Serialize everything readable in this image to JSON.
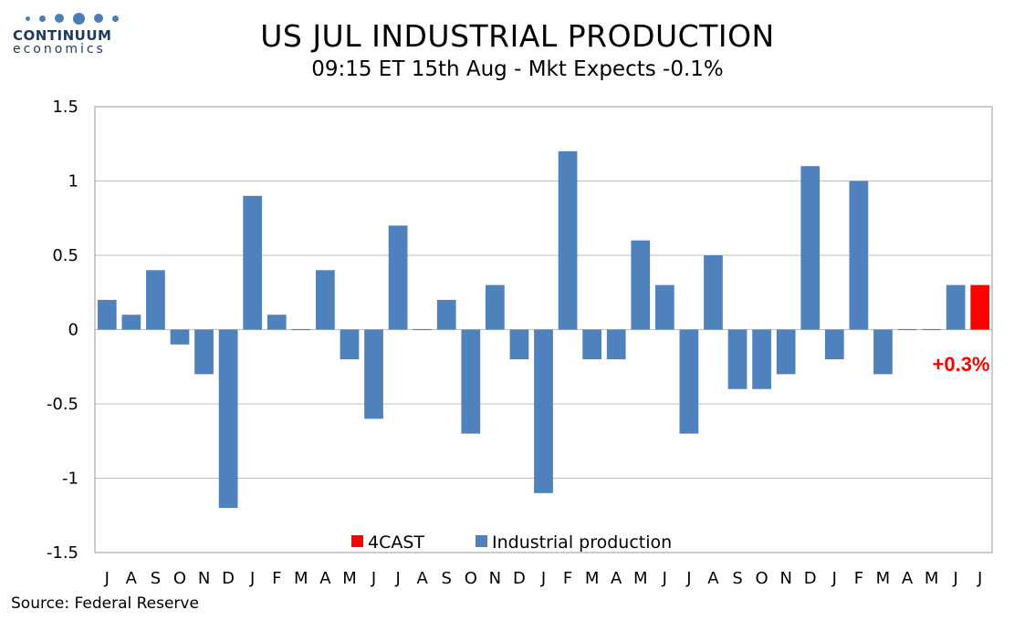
{
  "logo": {
    "name": "CONTINUUM",
    "tagline": "economics"
  },
  "title": "US JUL INDUSTRIAL PRODUCTION",
  "subtitle": "09:15 ET 15th Aug - Mkt Expects -0.1%",
  "source": "Source: Federal Reserve",
  "colors": {
    "actual": "#4f81bd",
    "forecast": "#ff0000"
  },
  "chart_data": {
    "type": "bar",
    "categories": [
      "J",
      "A",
      "S",
      "O",
      "N",
      "D",
      "J",
      "F",
      "M",
      "A",
      "M",
      "J",
      "J",
      "A",
      "S",
      "O",
      "N",
      "D",
      "J",
      "F",
      "M",
      "A",
      "M",
      "J",
      "J",
      "A",
      "S",
      "O",
      "N",
      "D",
      "J",
      "F",
      "M",
      "A",
      "M",
      "J",
      "J"
    ],
    "series": [
      {
        "name": "Industrial production",
        "values": [
          0.2,
          0.1,
          0.4,
          -0.1,
          -0.3,
          -1.2,
          0.9,
          0.1,
          0.0,
          0.4,
          -0.2,
          -0.6,
          0.7,
          0.0,
          0.2,
          -0.7,
          0.3,
          -0.2,
          -1.1,
          1.2,
          -0.2,
          -0.2,
          0.6,
          0.3,
          -0.7,
          0.5,
          -0.4,
          -0.4,
          -0.3,
          1.1,
          -0.2,
          1.0,
          -0.3,
          0.0,
          0.0,
          0.3,
          null
        ]
      },
      {
        "name": "4CAST",
        "values": [
          null,
          null,
          null,
          null,
          null,
          null,
          null,
          null,
          null,
          null,
          null,
          null,
          null,
          null,
          null,
          null,
          null,
          null,
          null,
          null,
          null,
          null,
          null,
          null,
          null,
          null,
          null,
          null,
          null,
          null,
          null,
          null,
          null,
          null,
          null,
          null,
          0.3
        ]
      }
    ],
    "yticks": [
      "1.5",
      "1",
      "0.5",
      "0",
      "-0.5",
      "-1",
      "-1.5"
    ],
    "ylim": [
      -1.5,
      1.5
    ],
    "ytick_step": 0.5,
    "grid": true,
    "legend": {
      "placement": "bottom-center",
      "entries": [
        "4CAST",
        "Industrial production"
      ]
    },
    "annotation": {
      "text": "+0.3%"
    }
  }
}
